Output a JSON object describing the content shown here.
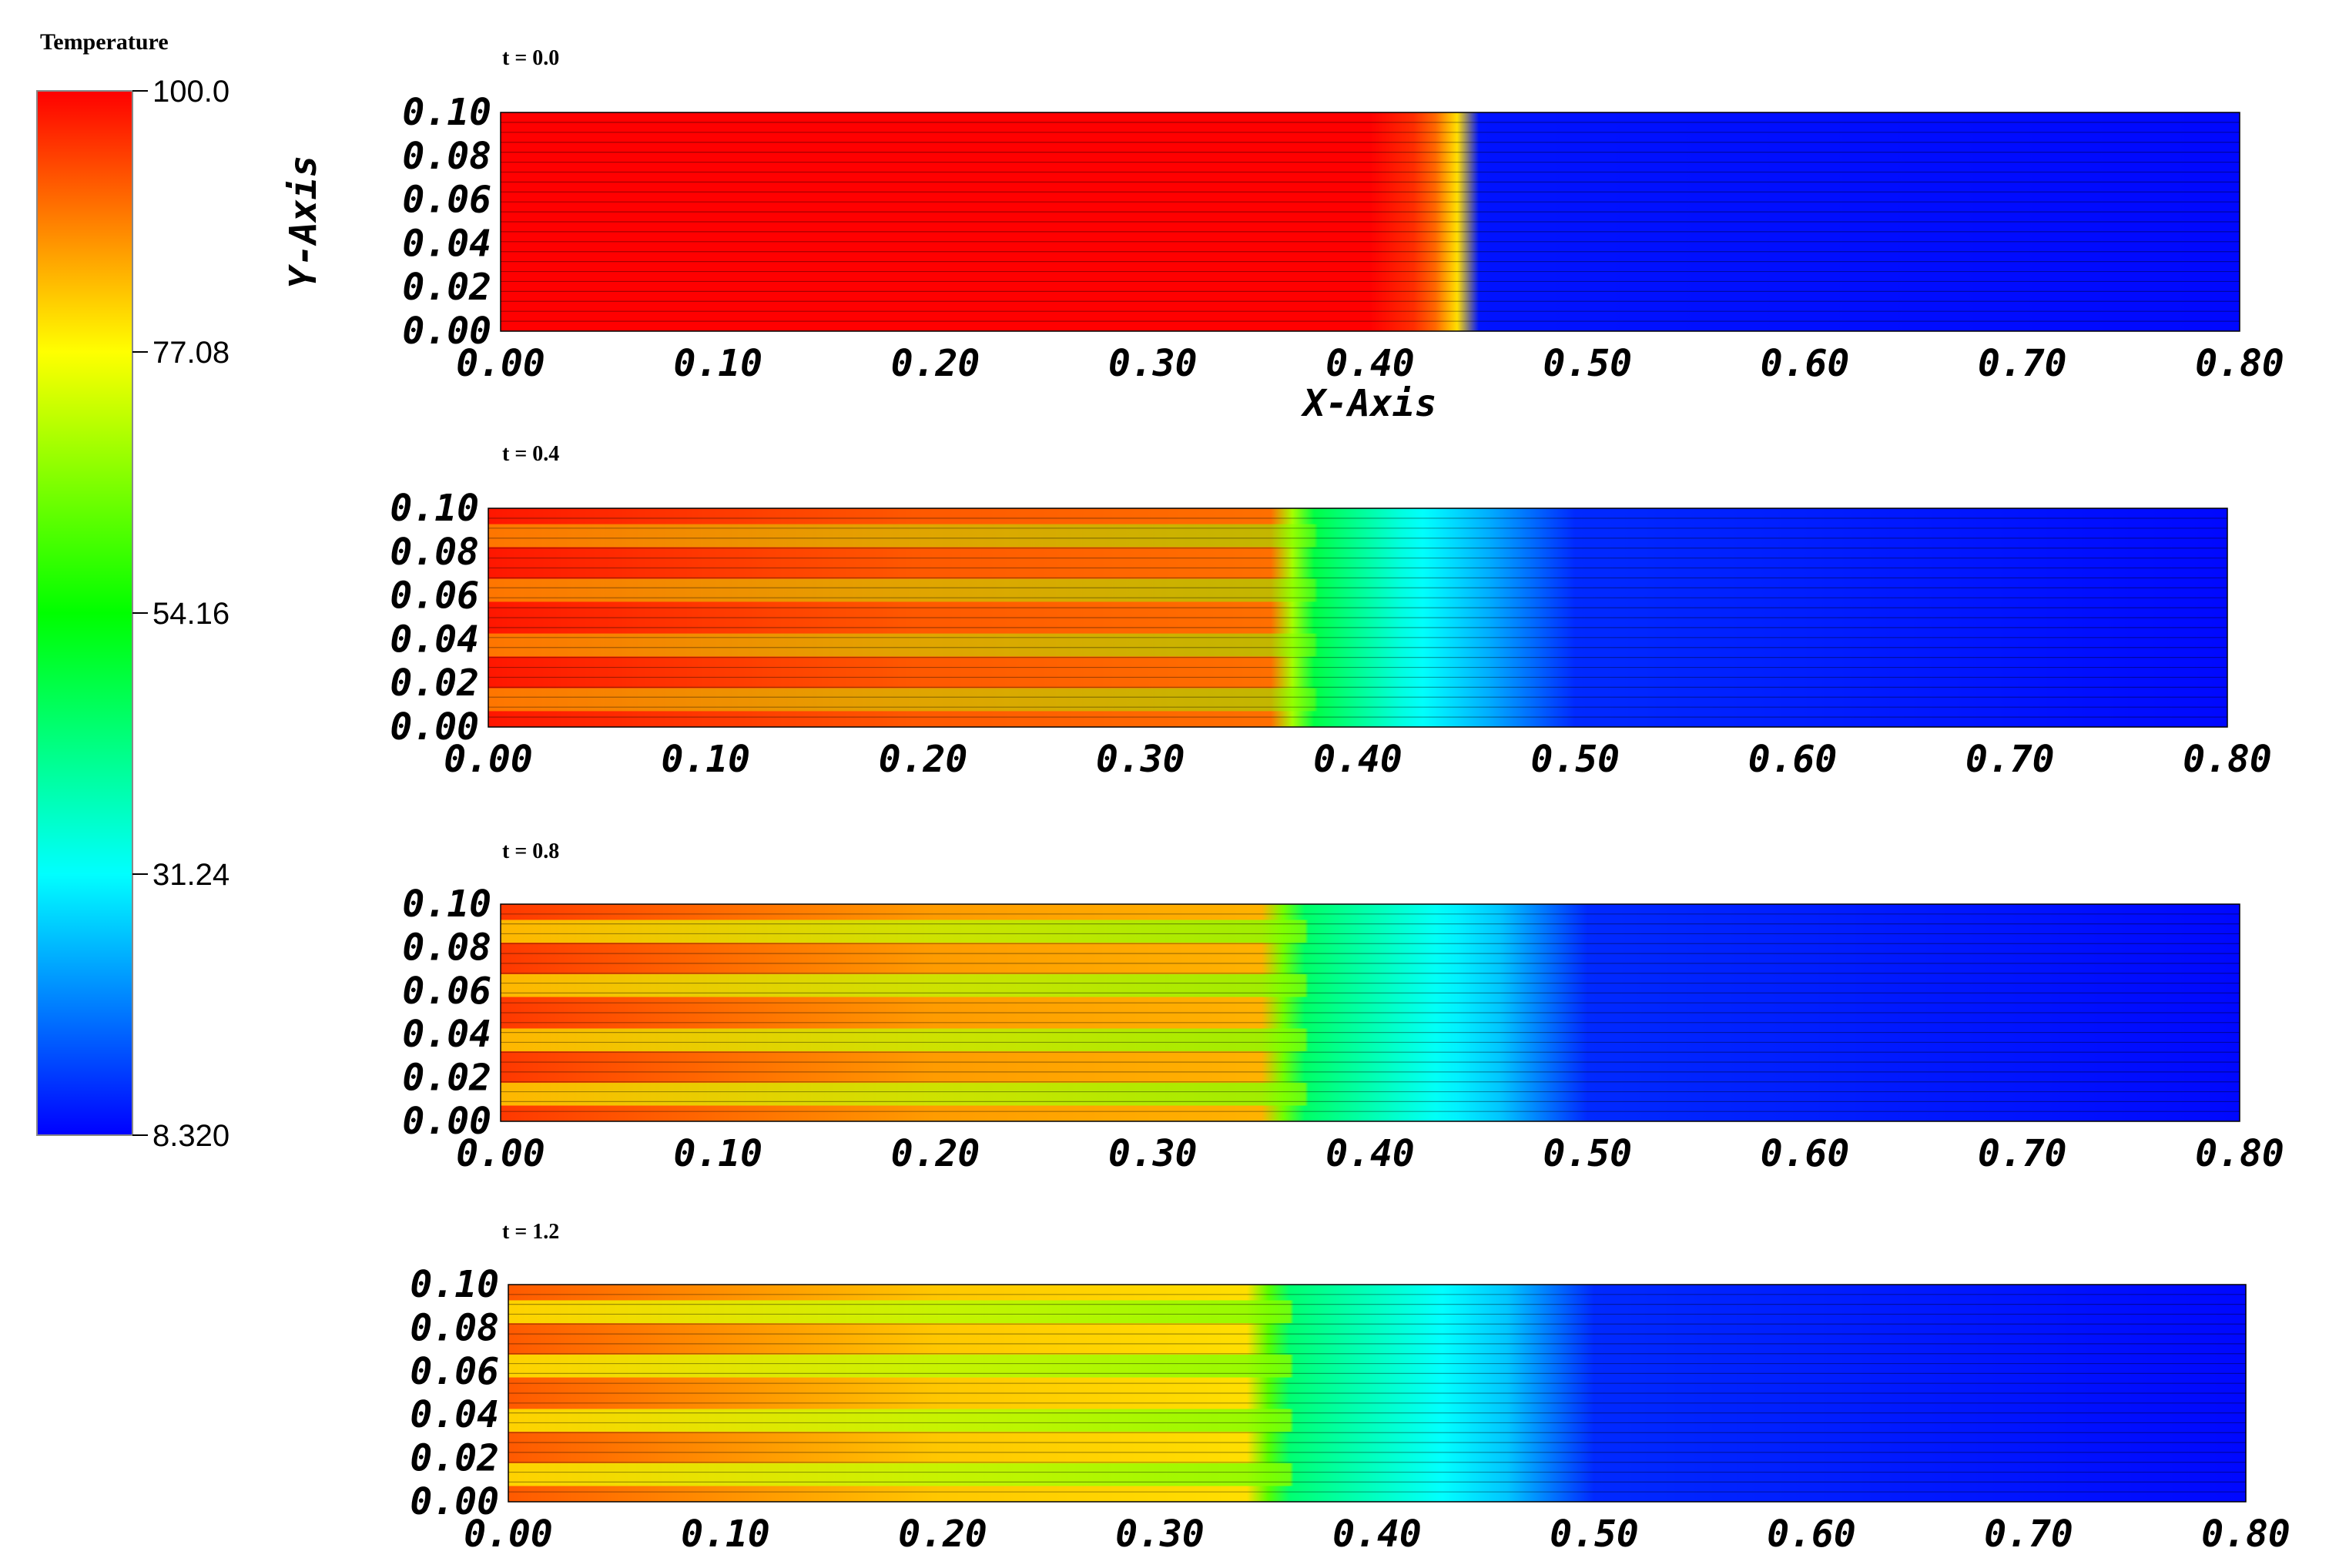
{
  "colorbar": {
    "title": "Temperature",
    "ticks": [
      "100.0",
      "77.08",
      "54.16",
      "31.24",
      "8.320"
    ],
    "range": [
      8.32,
      100.0
    ],
    "colormap": [
      "#0000ff",
      "#00ffff",
      "#00ff00",
      "#ffff00",
      "#ff0000"
    ]
  },
  "chart_data": [
    {
      "type": "heatmap",
      "title": "t = 0.0",
      "xlabel": "X-Axis",
      "ylabel": "Y-Axis",
      "xlim": [
        0.0,
        0.8
      ],
      "ylim": [
        0.0,
        0.1
      ],
      "x_ticks": [
        "0.00",
        "0.10",
        "0.20",
        "0.30",
        "0.40",
        "0.50",
        "0.60",
        "0.70",
        "0.80"
      ],
      "y_ticks": [
        "0.00",
        "0.02",
        "0.04",
        "0.06",
        "0.08",
        "0.10"
      ],
      "profile": [
        [
          0.0,
          100
        ],
        [
          0.4,
          100
        ],
        [
          0.42,
          96
        ],
        [
          0.435,
          88
        ],
        [
          0.445,
          72
        ],
        [
          0.448,
          10
        ],
        [
          0.8,
          9
        ]
      ],
      "stripe_amplitude": 0
    },
    {
      "type": "heatmap",
      "title": "t = 0.4",
      "xlabel": "",
      "ylabel": "",
      "xlim": [
        0.0,
        0.8
      ],
      "ylim": [
        0.0,
        0.1
      ],
      "x_ticks": [
        "0.00",
        "0.10",
        "0.20",
        "0.30",
        "0.40",
        "0.50",
        "0.60",
        "0.70",
        "0.80"
      ],
      "y_ticks": [
        "0.00",
        "0.02",
        "0.04",
        "0.06",
        "0.08",
        "0.10"
      ],
      "profile": [
        [
          0.0,
          98
        ],
        [
          0.2,
          92
        ],
        [
          0.36,
          90
        ],
        [
          0.38,
          48
        ],
        [
          0.42,
          34
        ],
        [
          0.46,
          24
        ],
        [
          0.5,
          12
        ],
        [
          0.8,
          9
        ]
      ],
      "stripe_amplitude": 9
    },
    {
      "type": "heatmap",
      "title": "t = 0.8",
      "xlabel": "",
      "ylabel": "",
      "xlim": [
        0.0,
        0.8
      ],
      "ylim": [
        0.0,
        0.1
      ],
      "x_ticks": [
        "0.00",
        "0.10",
        "0.20",
        "0.30",
        "0.40",
        "0.50",
        "0.60",
        "0.70",
        "0.80"
      ],
      "y_ticks": [
        "0.00",
        "0.02",
        "0.04",
        "0.06",
        "0.08",
        "0.10"
      ],
      "profile": [
        [
          0.0,
          95
        ],
        [
          0.2,
          86
        ],
        [
          0.35,
          84
        ],
        [
          0.37,
          45
        ],
        [
          0.42,
          34
        ],
        [
          0.46,
          26
        ],
        [
          0.5,
          12
        ],
        [
          0.8,
          9
        ]
      ],
      "stripe_amplitude": 14
    },
    {
      "type": "heatmap",
      "title": "t = 1.2",
      "xlabel": "",
      "ylabel": "",
      "xlim": [
        0.0,
        0.8
      ],
      "ylim": [
        0.0,
        0.1
      ],
      "x_ticks": [
        "0.00",
        "0.10",
        "0.20",
        "0.30",
        "0.40",
        "0.50",
        "0.60",
        "0.70",
        "0.80"
      ],
      "y_ticks": [
        "0.00",
        "0.02",
        "0.04",
        "0.06",
        "0.08",
        "0.10"
      ],
      "profile": [
        [
          0.0,
          92
        ],
        [
          0.2,
          82
        ],
        [
          0.34,
          80
        ],
        [
          0.36,
          44
        ],
        [
          0.42,
          33
        ],
        [
          0.46,
          26
        ],
        [
          0.5,
          12
        ],
        [
          0.8,
          9
        ]
      ],
      "stripe_amplitude": 16
    }
  ]
}
